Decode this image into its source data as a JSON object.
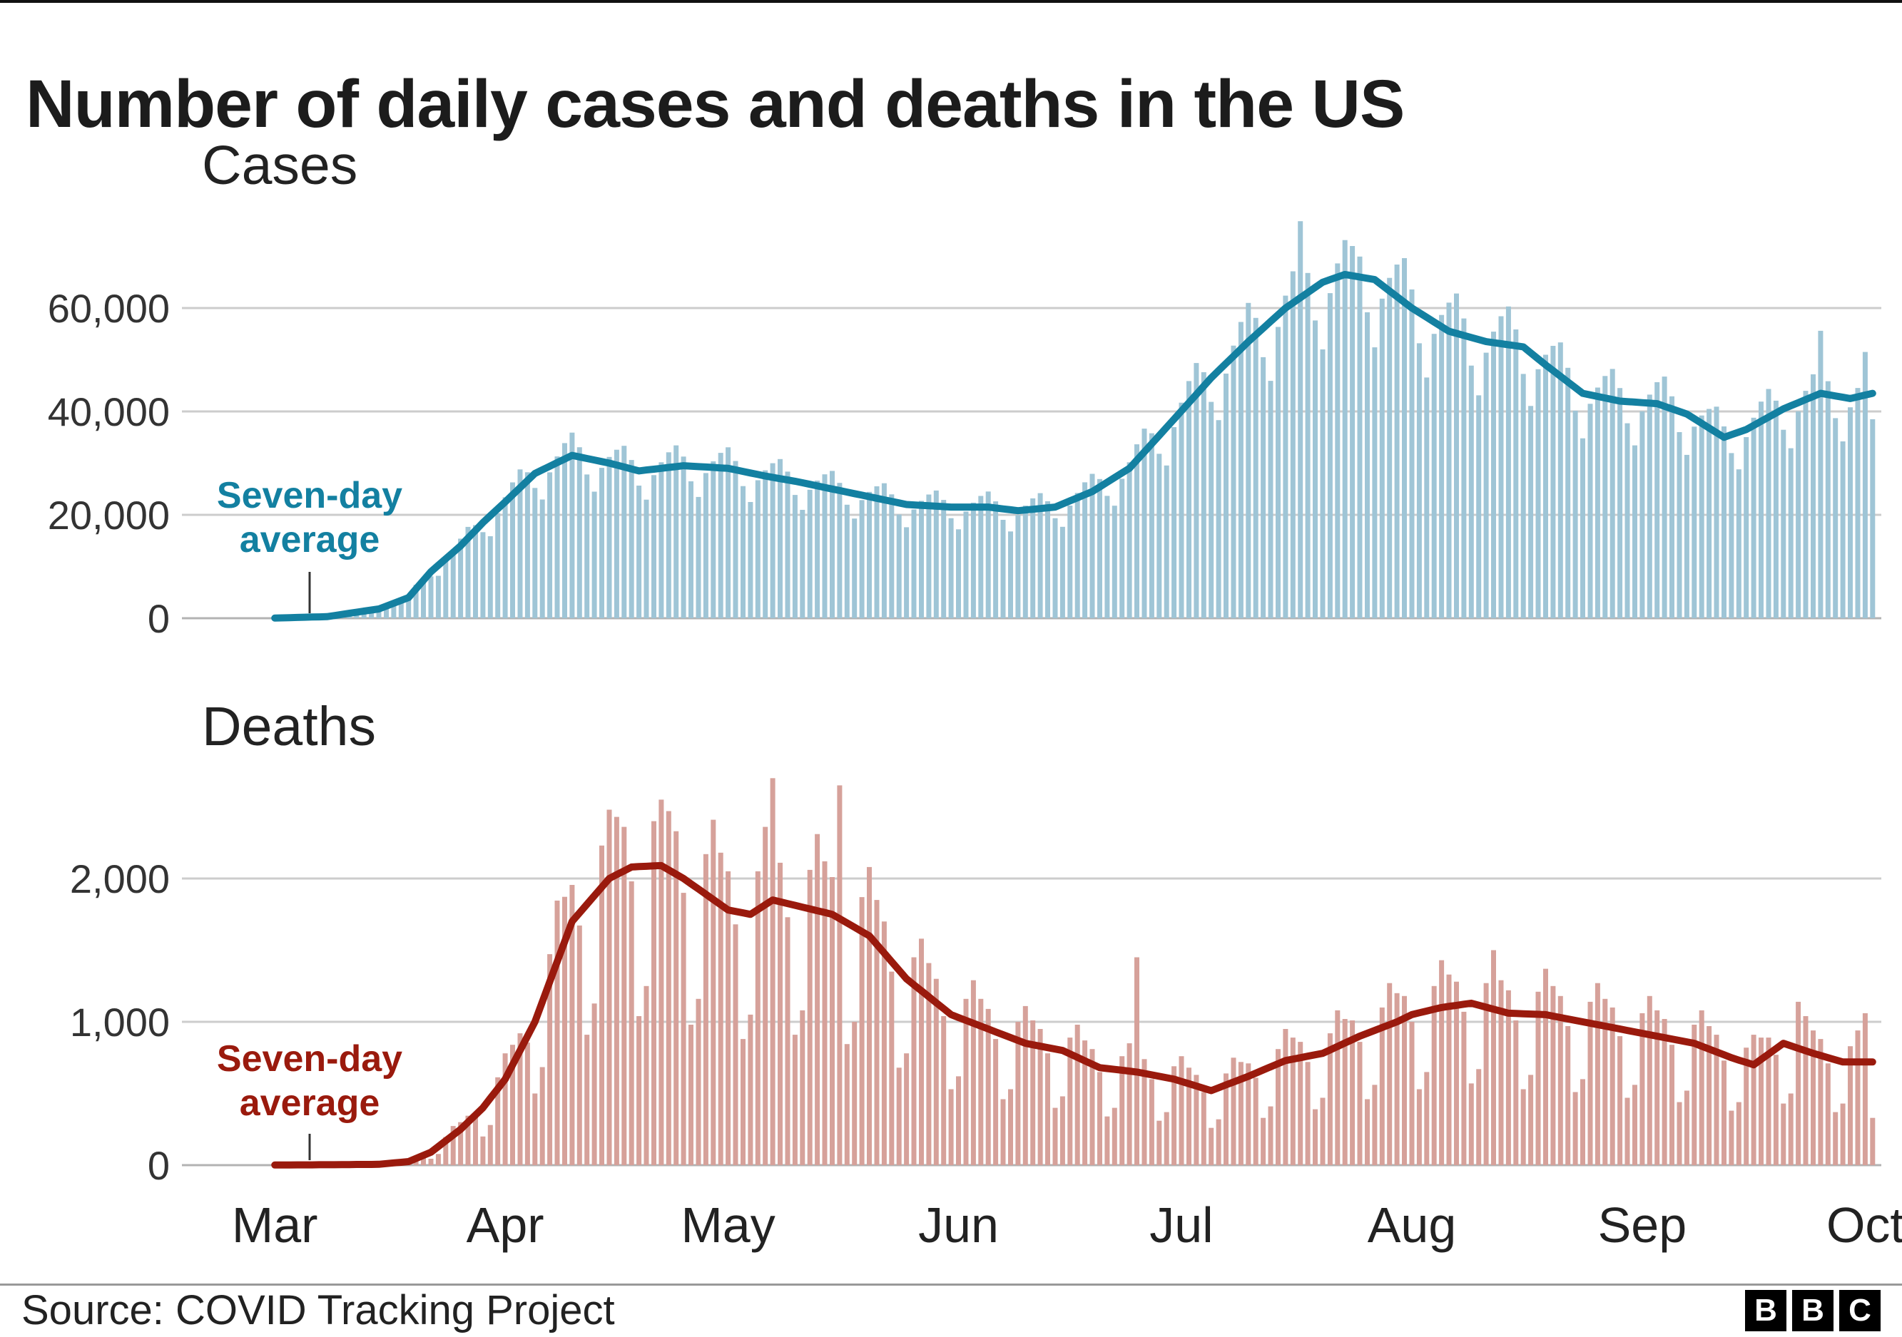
{
  "title": "Number of daily cases and deaths in the US",
  "footer": {
    "source": "Source: COVID Tracking Project"
  },
  "logo": {
    "letters": [
      "B",
      "B",
      "C"
    ]
  },
  "x_axis": {
    "labels": [
      "Mar",
      "Apr",
      "May",
      "Jun",
      "Jul",
      "Aug",
      "Sep",
      "Oct"
    ],
    "month_start_day_index": [
      0,
      31,
      61,
      92,
      122,
      153,
      184,
      214
    ]
  },
  "chart_data": [
    {
      "type": "bar",
      "title": "Cases",
      "ylim": [
        0,
        80000
      ],
      "yticks": [
        0,
        20000,
        40000,
        60000
      ],
      "ytick_labels": [
        "0",
        "20,000",
        "40,000",
        "60,000"
      ],
      "grid": true,
      "legend_position": "none",
      "annotation": {
        "lines": [
          "Seven-day",
          "average"
        ]
      },
      "colors": {
        "bar": "#9fc5d6",
        "line": "#1380a1"
      },
      "series": [
        {
          "name": "Daily cases",
          "type": "bar",
          "values": [
            27,
            56,
            106,
            156,
            209,
            262,
            281,
            270,
            412,
            700,
            983,
            1276,
            1568,
            1685,
            1620,
            1880,
            2784,
            3588,
            4400,
            6464,
            7770,
            8100,
            8200,
            11040,
            13260,
            15400,
            17670,
            18020,
            16650,
            15860,
            20320,
            23400,
            26270,
            28790,
            28230,
            25200,
            22960,
            28220,
            31300,
            33880,
            35910,
            33070,
            27810,
            24480,
            29090,
            31200,
            32590,
            33350,
            30610,
            25650,
            22940,
            27680,
            30160,
            32090,
            33440,
            31270,
            26480,
            23460,
            28080,
            30340,
            31990,
            33060,
            30420,
            25560,
            22480,
            26690,
            28600,
            29980,
            30780,
            28360,
            23850,
            20960,
            24860,
            26620,
            27830,
            28500,
            26180,
            21960,
            19280,
            22850,
            24440,
            25520,
            26110,
            23960,
            20070,
            17600,
            21040,
            22700,
            23930,
            24700,
            22880,
            19350,
            17200,
            20640,
            22360,
            23650,
            24510,
            22600,
            19040,
            16780,
            19970,
            21780,
            23190,
            24190,
            22640,
            19350,
            17680,
            21790,
            24230,
            26290,
            27930,
            26920,
            23670,
            21760,
            26980,
            30160,
            33640,
            36670,
            35780,
            31800,
            29540,
            36960,
            41700,
            45870,
            49360,
            47590,
            41850,
            38320,
            47330,
            52730,
            57310,
            60990,
            58090,
            50490,
            45920,
            56350,
            62400,
            67100,
            76800,
            66780,
            57600,
            52000,
            62880,
            68640,
            73150,
            72000,
            69960,
            59180,
            52400,
            61820,
            65830,
            68420,
            69650,
            63600,
            53190,
            46560,
            55010,
            58660,
            61050,
            62810,
            57980,
            48870,
            43120,
            51360,
            55430,
            58410,
            60310,
            55860,
            47250,
            41060,
            48160,
            50960,
            52690,
            53350,
            48440,
            40140,
            34800,
            41470,
            44620,
            46860,
            48220,
            44520,
            37710,
            33440,
            40030,
            43260,
            45650,
            46740,
            42930,
            36000,
            31600,
            37060,
            39210,
            40480,
            40930,
            37100,
            31950,
            28800,
            35040,
            38790,
            41910,
            44350,
            42080,
            36450,
            32880,
            40030,
            43990,
            47190,
            55600,
            45850,
            38700,
            34200,
            40800,
            44540,
            51500,
            38500
          ]
        },
        {
          "name": "Seven-day average",
          "type": "line",
          "values": [
            30,
            70,
            110,
            150,
            190,
            230,
            265,
            300,
            515,
            730,
            945,
            1160,
            1375,
            1590,
            1800,
            2350,
            2900,
            3450,
            4000,
            5670,
            7330,
            9000,
            10250,
            11500,
            12750,
            14000,
            15500,
            17000,
            18500,
            19830,
            21170,
            22500,
            23880,
            25250,
            26630,
            28000,
            28700,
            29400,
            30100,
            30800,
            31500,
            31200,
            30900,
            30600,
            30300,
            30000,
            29625,
            29250,
            28875,
            28500,
            28670,
            28830,
            29000,
            29170,
            29330,
            29500,
            29420,
            29330,
            29250,
            29170,
            29080,
            29000,
            28700,
            28400,
            28100,
            27800,
            27500,
            27250,
            27000,
            26750,
            26500,
            26200,
            25900,
            25600,
            25300,
            25000,
            24700,
            24400,
            24100,
            23800,
            23500,
            23200,
            22900,
            22600,
            22300,
            22000,
            21920,
            21830,
            21750,
            21670,
            21580,
            21500,
            21500,
            21500,
            21500,
            21500,
            21500,
            21325,
            21150,
            20975,
            20800,
            20940,
            21080,
            21220,
            21360,
            21500,
            22100,
            22700,
            23300,
            23900,
            24500,
            25400,
            26300,
            27200,
            28100,
            29000,
            30580,
            32170,
            33750,
            35330,
            36920,
            38500,
            40100,
            41700,
            43300,
            44900,
            46500,
            47900,
            49300,
            50700,
            52100,
            53500,
            54800,
            56100,
            57400,
            58700,
            60000,
            61000,
            62000,
            63000,
            64000,
            65000,
            65500,
            66000,
            66500,
            66250,
            66000,
            65750,
            65500,
            64400,
            63300,
            62200,
            61100,
            60000,
            59100,
            58200,
            57300,
            56400,
            55500,
            55100,
            54700,
            54300,
            53900,
            53500,
            53300,
            53100,
            52900,
            52700,
            52500,
            51330,
            50170,
            49000,
            47900,
            46800,
            45700,
            44600,
            43500,
            43200,
            42900,
            42600,
            42300,
            42000,
            41900,
            41800,
            41700,
            41600,
            41500,
            41000,
            40500,
            40000,
            39500,
            38600,
            37700,
            36800,
            35900,
            35000,
            35500,
            36000,
            36500,
            37300,
            38100,
            38900,
            39700,
            40500,
            41100,
            41700,
            42300,
            42900,
            43500,
            43250,
            43000,
            42750,
            42500,
            42830,
            43170,
            43500
          ]
        }
      ]
    },
    {
      "type": "bar",
      "title": "Deaths",
      "ylim": [
        0,
        2800
      ],
      "yticks": [
        0,
        1000,
        2000
      ],
      "ytick_labels": [
        "0",
        "1,000",
        "2,000"
      ],
      "grid": true,
      "legend_position": "none",
      "annotation": {
        "lines": [
          "Seven-day",
          "average"
        ]
      },
      "colors": {
        "bar": "#d6a19a",
        "line": "#9a1a0d"
      },
      "series": [
        {
          "name": "Daily deaths",
          "type": "bar",
          "values": [
            0,
            1,
            1,
            3,
            2,
            2,
            3,
            2,
            2,
            5,
            5,
            6,
            6,
            5,
            3,
            7,
            18,
            26,
            30,
            54,
            65,
            45,
            78,
            196,
            273,
            300,
            345,
            333,
            200,
            280,
            613,
            780,
            840,
            920,
            855,
            500,
            684,
            1472,
            1846,
            1872,
            1955,
            1672,
            910,
            1128,
            2230,
            2480,
            2430,
            2360,
            1980,
            1040,
            1250,
            2400,
            2550,
            2470,
            2330,
            1900,
            980,
            1160,
            2170,
            2410,
            2180,
            2050,
            1680,
            880,
            1050,
            2050,
            2360,
            2700,
            2110,
            1730,
            910,
            1080,
            2060,
            2310,
            2120,
            2010,
            2650,
            845,
            1000,
            1870,
            2080,
            1850,
            1700,
            1350,
            680,
            780,
            1450,
            1580,
            1410,
            1300,
            1040,
            530,
            620,
            1160,
            1290,
            1160,
            1090,
            880,
            460,
            530,
            1000,
            1110,
            1010,
            950,
            780,
            400,
            480,
            890,
            980,
            870,
            810,
            650,
            340,
            400,
            760,
            850,
            1450,
            740,
            600,
            310,
            370,
            690,
            760,
            680,
            630,
            510,
            260,
            320,
            640,
            750,
            720,
            710,
            610,
            330,
            410,
            810,
            950,
            890,
            860,
            720,
            390,
            470,
            920,
            1080,
            1020,
            1010,
            860,
            460,
            560,
            1100,
            1270,
            1200,
            1180,
            1000,
            530,
            650,
            1250,
            1430,
            1330,
            1280,
            1070,
            570,
            670,
            1270,
            1500,
            1290,
            1220,
            1010,
            530,
            630,
            1210,
            1370,
            1250,
            1180,
            970,
            510,
            600,
            1140,
            1270,
            1160,
            1100,
            900,
            470,
            560,
            1060,
            1180,
            1080,
            1020,
            840,
            440,
            520,
            980,
            1080,
            970,
            910,
            730,
            380,
            440,
            820,
            910,
            890,
            890,
            770,
            430,
            500,
            1140,
            1040,
            940,
            880,
            710,
            370,
            430,
            830,
            940,
            1060,
            330
          ]
        },
        {
          "name": "Seven-day average",
          "type": "line",
          "values": [
            1,
            1,
            1,
            2,
            2,
            2,
            3,
            3,
            3,
            4,
            4,
            5,
            5,
            5,
            6,
            11,
            16,
            20,
            25,
            47,
            68,
            90,
            130,
            170,
            210,
            250,
            300,
            350,
            400,
            467,
            533,
            600,
            700,
            800,
            900,
            1000,
            1140,
            1280,
            1420,
            1560,
            1700,
            1760,
            1820,
            1880,
            1940,
            2000,
            2027,
            2053,
            2080,
            2083,
            2085,
            2088,
            2090,
            2060,
            2030,
            2000,
            1963,
            1927,
            1890,
            1853,
            1817,
            1780,
            1770,
            1760,
            1750,
            1783,
            1817,
            1850,
            1838,
            1825,
            1813,
            1800,
            1788,
            1775,
            1763,
            1750,
            1720,
            1690,
            1660,
            1630,
            1600,
            1540,
            1480,
            1420,
            1360,
            1300,
            1258,
            1217,
            1175,
            1133,
            1092,
            1050,
            1030,
            1010,
            990,
            970,
            950,
            930,
            910,
            890,
            870,
            850,
            840,
            830,
            820,
            810,
            800,
            776,
            752,
            728,
            704,
            680,
            674,
            668,
            662,
            656,
            650,
            640,
            630,
            620,
            610,
            600,
            584,
            568,
            552,
            536,
            520,
            540,
            560,
            580,
            600,
            620,
            642,
            664,
            686,
            708,
            730,
            740,
            750,
            760,
            770,
            780,
            804,
            828,
            852,
            876,
            900,
            920,
            940,
            960,
            980,
            1000,
            1025,
            1050,
            1063,
            1075,
            1088,
            1100,
            1108,
            1115,
            1123,
            1130,
            1116,
            1102,
            1088,
            1074,
            1060,
            1058,
            1056,
            1054,
            1052,
            1050,
            1040,
            1030,
            1020,
            1010,
            1000,
            990,
            980,
            970,
            960,
            950,
            940,
            930,
            920,
            910,
            900,
            890,
            880,
            870,
            860,
            850,
            830,
            810,
            790,
            770,
            750,
            733,
            717,
            700,
            738,
            775,
            813,
            850,
            833,
            815,
            798,
            780,
            765,
            750,
            735,
            720,
            720,
            720,
            720,
            720
          ]
        }
      ]
    }
  ]
}
